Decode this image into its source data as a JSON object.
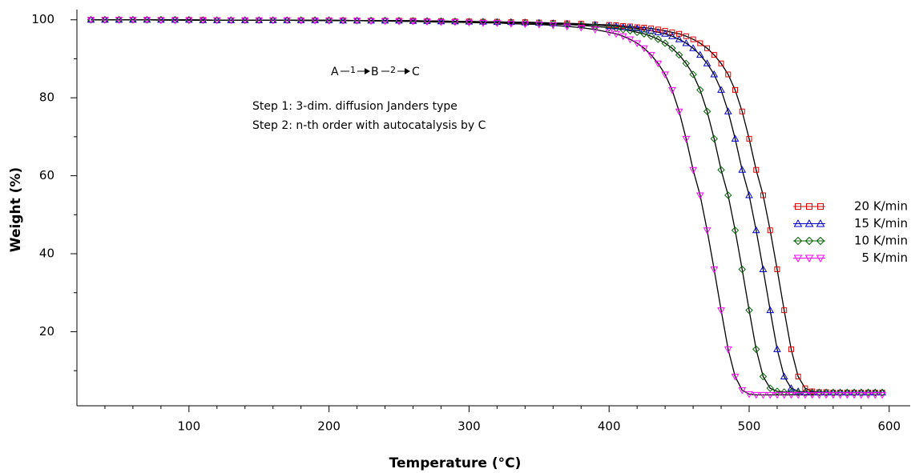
{
  "chart_data": {
    "type": "line",
    "xlabel": "Temperature (°C)",
    "ylabel": "Weight (%)",
    "annotation": {
      "scheme": [
        "A",
        "1",
        "B",
        "2",
        "C"
      ],
      "lines": [
        "Step 1: 3-dim. diffusion Janders type",
        "Step 2: n-th order with autocatalysis by C"
      ]
    },
    "x": [
      30,
      40,
      50,
      60,
      70,
      80,
      90,
      100,
      110,
      120,
      130,
      140,
      150,
      160,
      170,
      180,
      190,
      200,
      210,
      220,
      230,
      240,
      250,
      260,
      270,
      280,
      290,
      300,
      310,
      320,
      330,
      340,
      350,
      360,
      370,
      380,
      390,
      400,
      405,
      410,
      415,
      420,
      425,
      430,
      435,
      440,
      445,
      450,
      455,
      460,
      465,
      470,
      475,
      480,
      485,
      490,
      495,
      500,
      505,
      510,
      515,
      520,
      525,
      530,
      535,
      540,
      545,
      550,
      555,
      560,
      565,
      570,
      575,
      580,
      585,
      590,
      595
    ],
    "series": [
      {
        "name": "20 K/min",
        "color": "#e00000",
        "marker": "square",
        "values": [
          100,
          100,
          100,
          100,
          100,
          100,
          100,
          100,
          100,
          99.9,
          99.9,
          99.9,
          99.9,
          99.9,
          99.9,
          99.9,
          99.9,
          99.9,
          99.9,
          99.8,
          99.8,
          99.8,
          99.8,
          99.8,
          99.7,
          99.7,
          99.6,
          99.6,
          99.5,
          99.5,
          99.4,
          99.4,
          99.3,
          99.2,
          99.1,
          99.0,
          98.8,
          98.7,
          98.6,
          98.4,
          98.3,
          98.1,
          98.0,
          97.8,
          97.5,
          97.2,
          96.8,
          96.4,
          95.8,
          95.0,
          94.0,
          92.7,
          91.0,
          88.8,
          86.0,
          82.0,
          76.5,
          69.5,
          61.5,
          55,
          46,
          36,
          25.5,
          15.5,
          8.5,
          5.5,
          4.7,
          4.5,
          4.5,
          4.4,
          4.4,
          4.4,
          4.4,
          4.4,
          4.4,
          4.4,
          4.4
        ]
      },
      {
        "name": "15 K/min",
        "color": "#0000d0",
        "marker": "triangle-up",
        "values": [
          100,
          100,
          100,
          100,
          100,
          100,
          100,
          100,
          99.9,
          99.9,
          99.9,
          99.9,
          99.9,
          99.9,
          99.9,
          99.9,
          99.9,
          99.9,
          99.8,
          99.8,
          99.8,
          99.8,
          99.8,
          99.7,
          99.7,
          99.6,
          99.6,
          99.5,
          99.5,
          99.4,
          99.4,
          99.3,
          99.2,
          99.1,
          99.0,
          98.8,
          98.7,
          98.4,
          98.3,
          98.1,
          98.0,
          97.8,
          97.5,
          97.2,
          96.8,
          96.4,
          95.8,
          95.0,
          94.0,
          92.7,
          91.0,
          88.8,
          86.0,
          82.0,
          76.5,
          69.5,
          61.5,
          55,
          46,
          36,
          25.5,
          15.5,
          8.5,
          5.5,
          4.7,
          4.5,
          4.5,
          4.4,
          4.4,
          4.4,
          4.4,
          4.4,
          4.4,
          4.4,
          4.4,
          4.4,
          4.4
        ]
      },
      {
        "name": "10 K/min",
        "color": "#006400",
        "marker": "diamond",
        "values": [
          100,
          100,
          100,
          100,
          100,
          100,
          100,
          99.9,
          99.9,
          99.9,
          99.9,
          99.9,
          99.9,
          99.9,
          99.9,
          99.9,
          99.9,
          99.8,
          99.8,
          99.8,
          99.8,
          99.8,
          99.7,
          99.7,
          99.6,
          99.6,
          99.5,
          99.4,
          99.4,
          99.3,
          99.2,
          99.2,
          99.0,
          98.9,
          98.8,
          98.6,
          98.3,
          98.0,
          97.8,
          97.5,
          97.2,
          96.8,
          96.4,
          95.8,
          95.0,
          94.0,
          92.7,
          91.0,
          88.8,
          86.0,
          82.0,
          76.5,
          69.5,
          61.5,
          55,
          46,
          36,
          25.5,
          15.5,
          8.5,
          5.5,
          4.7,
          4.5,
          4.5,
          4.4,
          4.4,
          4.4,
          4.4,
          4.4,
          4.4,
          4.4,
          4.4,
          4.4,
          4.4,
          4.4,
          4.4,
          4.4
        ]
      },
      {
        "name": "5 K/min",
        "color": "#ff00ff",
        "marker": "triangle-down",
        "values": [
          100,
          100,
          100,
          100,
          100,
          99.9,
          99.9,
          99.9,
          99.9,
          99.9,
          99.9,
          99.9,
          99.9,
          99.9,
          99.9,
          99.8,
          99.8,
          99.8,
          99.8,
          99.8,
          99.7,
          99.7,
          99.6,
          99.6,
          99.5,
          99.4,
          99.4,
          99.3,
          99.2,
          99.2,
          99.0,
          98.9,
          98.8,
          98.6,
          98.3,
          98.0,
          97.5,
          96.8,
          96.4,
          95.8,
          95.0,
          94.0,
          92.7,
          91.0,
          88.8,
          86.0,
          82.0,
          76.5,
          69.5,
          61.5,
          55,
          46,
          36,
          25.5,
          15.5,
          8.5,
          5.0,
          4.0,
          3.8,
          3.8,
          3.8,
          3.8,
          3.8,
          3.8,
          3.8,
          3.8,
          3.8,
          3.8,
          3.8,
          3.8,
          3.8,
          3.8,
          3.8,
          3.8,
          3.8,
          3.8,
          3.8
        ]
      }
    ],
    "fit_color": "#000000",
    "xlim": [
      20,
      615
    ],
    "ylim": [
      1,
      102
    ],
    "xticks": [
      100,
      200,
      300,
      400,
      500,
      600
    ],
    "xminorticks": [
      40,
      60,
      80,
      120,
      140,
      160,
      180,
      220,
      240,
      260,
      280,
      320,
      340,
      360,
      380,
      420,
      440,
      460,
      480,
      520,
      540,
      560,
      580
    ],
    "yticks": [
      20,
      40,
      60,
      80,
      100
    ],
    "yminorticks": [
      10,
      30,
      50,
      70,
      90
    ],
    "legend": "right"
  }
}
